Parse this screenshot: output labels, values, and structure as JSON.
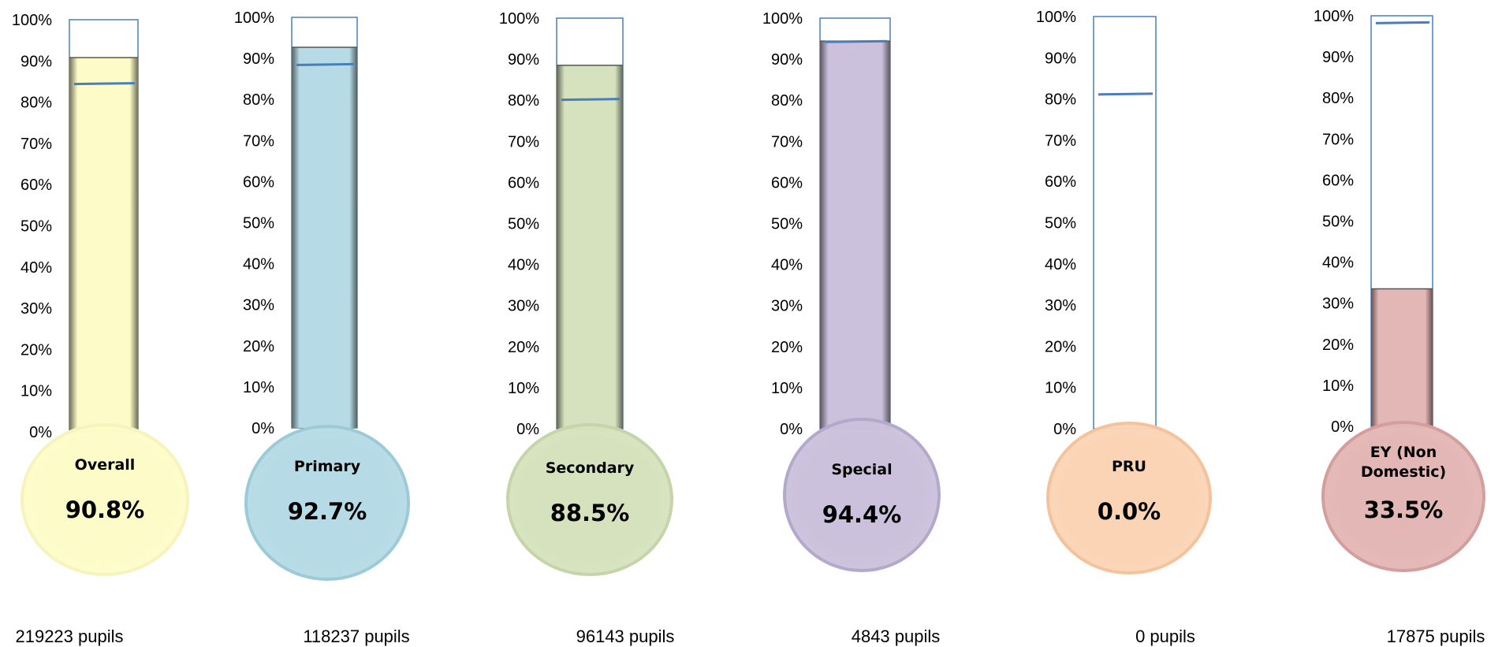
{
  "chart_data": [
    {
      "type": "bar",
      "category": "Overall",
      "value": 90.8,
      "value_label": "90.8%",
      "target_marker": 84.5,
      "pupils_label": "219223 pupils",
      "ylim": [
        0,
        100
      ],
      "yticks": [
        "0%",
        "10%",
        "20%",
        "30%",
        "40%",
        "50%",
        "60%",
        "70%",
        "80%",
        "90%",
        "100%"
      ],
      "color": "#fdfcc8",
      "bulb_border": "#f6f3bd"
    },
    {
      "type": "bar",
      "category": "Primary",
      "value": 92.7,
      "value_label": "92.7%",
      "target_marker": 88.5,
      "pupils_label": "118237 pupils",
      "ylim": [
        0,
        100
      ],
      "yticks": [
        "0%",
        "10%",
        "20%",
        "30%",
        "40%",
        "50%",
        "60%",
        "70%",
        "80%",
        "90%",
        "100%"
      ],
      "color": "#b6dbe6",
      "bulb_border": "#9ccbd8"
    },
    {
      "type": "bar",
      "category": "Secondary",
      "value": 88.5,
      "value_label": "88.5%",
      "target_marker": 80.2,
      "pupils_label": "96143 pupils",
      "ylim": [
        0,
        100
      ],
      "yticks": [
        "0%",
        "10%",
        "20%",
        "30%",
        "40%",
        "50%",
        "60%",
        "70%",
        "80%",
        "90%",
        "100%"
      ],
      "color": "#d6e2be",
      "bulb_border": "#c5d4a9"
    },
    {
      "type": "bar",
      "category": "Special",
      "value": 94.4,
      "value_label": "94.4%",
      "target_marker": 94.3,
      "pupils_label": "4843 pupils",
      "ylim": [
        0,
        100
      ],
      "yticks": [
        "0%",
        "10%",
        "20%",
        "30%",
        "40%",
        "50%",
        "60%",
        "70%",
        "80%",
        "90%",
        "100%"
      ],
      "color": "#cbc1dc",
      "bulb_border": "#b4a8cb"
    },
    {
      "type": "bar",
      "category": "PRU",
      "value": 0.0,
      "value_label": "0.0%",
      "target_marker": 81.2,
      "pupils_label": "0 pupils",
      "ylim": [
        0,
        100
      ],
      "yticks": [
        "0%",
        "10%",
        "20%",
        "30%",
        "40%",
        "50%",
        "60%",
        "70%",
        "80%",
        "90%",
        "100%"
      ],
      "color": "#fbd4b6",
      "bulb_border": "#f4c29b"
    },
    {
      "type": "bar",
      "category": "EY (Non Domestic)",
      "category_lines": [
        "EY (Non",
        "Domestic)"
      ],
      "value": 33.5,
      "value_label": "33.5%",
      "target_marker": 98.3,
      "pupils_label": "17875 pupils",
      "ylim": [
        0,
        100
      ],
      "yticks": [
        "0%",
        "10%",
        "20%",
        "30%",
        "40%",
        "50%",
        "60%",
        "70%",
        "80%",
        "90%",
        "100%"
      ],
      "color": "#e3b7b6",
      "bulb_border": "#d39e9c"
    }
  ],
  "colors": {
    "outline": "#4a7ebb",
    "marker": "#4a7ebb"
  }
}
